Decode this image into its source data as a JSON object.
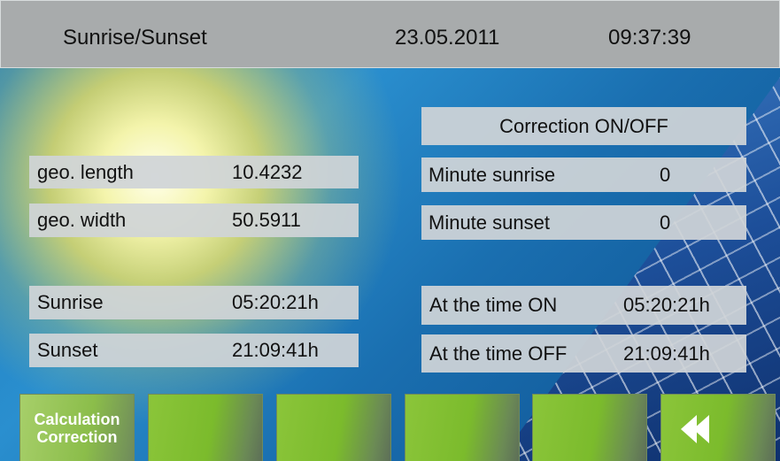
{
  "header": {
    "title": "Sunrise/Sunset",
    "date": "23.05.2011",
    "time": "09:37:39"
  },
  "left": [
    {
      "label": "geo. length",
      "value": "10.4232"
    },
    {
      "label": "geo. width",
      "value": "50.5911"
    },
    {
      "label": "Sunrise",
      "value": "05:20:21h"
    },
    {
      "label": "Sunset",
      "value": "21:09:41h"
    }
  ],
  "right": {
    "toggle": "Correction ON/OFF",
    "rows": [
      {
        "label": "Minute sunrise",
        "value": "0"
      },
      {
        "label": "Minute sunset",
        "value": "0"
      },
      {
        "label": "At the time ON",
        "value": "05:20:21h"
      },
      {
        "label": "At the time OFF",
        "value": "21:09:41h"
      }
    ]
  },
  "buttons": {
    "first": [
      "Calculation",
      "Correction"
    ]
  }
}
